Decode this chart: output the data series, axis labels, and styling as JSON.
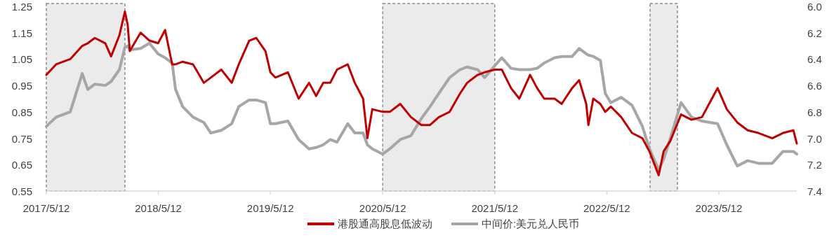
{
  "chart_data": {
    "type": "line",
    "x": [
      "2017-05-12",
      "2017-06-13",
      "2017-07-29",
      "2017-09-06",
      "2017-09-24",
      "2017-10-17",
      "2017-11-20",
      "2017-12-09",
      "2018-01-05",
      "2018-01-23",
      "2018-02-01",
      "2018-02-08",
      "2018-03-15",
      "2018-04-13",
      "2018-05-11",
      "2018-06-03",
      "2018-06-26",
      "2018-07-07",
      "2018-07-30",
      "2018-09-02",
      "2018-10-07",
      "2018-10-30",
      "2018-12-03",
      "2019-01-06",
      "2019-01-29",
      "2019-03-04",
      "2019-03-27",
      "2019-04-26",
      "2019-05-12",
      "2019-05-28",
      "2019-07-08",
      "2019-08-12",
      "2019-09-15",
      "2019-10-08",
      "2019-10-31",
      "2019-11-23",
      "2019-12-15",
      "2020-01-19",
      "2020-02-11",
      "2020-03-09",
      "2020-03-23",
      "2020-04-08",
      "2020-05-12",
      "2020-06-04",
      "2020-07-08",
      "2020-08-12",
      "2020-09-15",
      "2020-10-13",
      "2020-11-11",
      "2020-12-16",
      "2021-01-19",
      "2021-02-11",
      "2021-03-17",
      "2021-04-09",
      "2021-05-12",
      "2021-06-04",
      "2021-07-04",
      "2021-07-31",
      "2021-09-04",
      "2021-09-27",
      "2021-10-20",
      "2021-11-23",
      "2021-12-16",
      "2022-01-19",
      "2022-02-11",
      "2022-03-06",
      "2022-03-13",
      "2022-03-29",
      "2022-04-21",
      "2022-05-07",
      "2022-05-25",
      "2022-06-28",
      "2022-08-02",
      "2022-09-05",
      "2022-09-28",
      "2022-10-28",
      "2022-11-13",
      "2022-12-05",
      "2023-01-09",
      "2023-02-12",
      "2023-03-18",
      "2023-05-08",
      "2023-06-07",
      "2023-07-11",
      "2023-08-14",
      "2023-09-18",
      "2023-11-02",
      "2023-12-07",
      "2024-01-10",
      "2024-01-21"
    ],
    "series": [
      {
        "name": "港股通高股息低波动",
        "color": "#c00000",
        "values": [
          0.99,
          1.03,
          1.05,
          1.1,
          1.11,
          1.13,
          1.11,
          1.06,
          1.14,
          1.23,
          1.18,
          1.08,
          1.15,
          1.12,
          1.11,
          1.16,
          1.03,
          1.03,
          1.04,
          1.03,
          0.96,
          0.98,
          1.01,
          0.96,
          1.03,
          1.12,
          1.13,
          1.08,
          1.0,
          0.98,
          1.0,
          0.9,
          0.96,
          0.91,
          0.96,
          0.96,
          1.01,
          1.03,
          0.96,
          0.9,
          0.75,
          0.86,
          0.85,
          0.85,
          0.88,
          0.83,
          0.8,
          0.8,
          0.83,
          0.85,
          0.92,
          0.96,
          0.99,
          1.0,
          1.01,
          1.01,
          0.94,
          0.9,
          0.99,
          0.94,
          0.9,
          0.9,
          0.88,
          0.94,
          0.97,
          0.88,
          0.8,
          0.9,
          0.88,
          0.85,
          0.87,
          0.83,
          0.77,
          0.75,
          0.7,
          0.61,
          0.7,
          0.74,
          0.84,
          0.82,
          0.83,
          0.94,
          0.86,
          0.81,
          0.78,
          0.77,
          0.75,
          0.77,
          0.78,
          0.73
        ]
      },
      {
        "name": "中间价:美元兑人民币",
        "color": "#a6a6a6",
        "axis": "y2",
        "values": [
          6.91,
          6.84,
          6.8,
          6.51,
          6.63,
          6.59,
          6.6,
          6.57,
          6.48,
          6.31,
          6.3,
          6.33,
          6.32,
          6.28,
          6.36,
          6.39,
          6.43,
          6.63,
          6.76,
          6.84,
          6.88,
          6.96,
          6.94,
          6.89,
          6.76,
          6.71,
          6.71,
          6.73,
          6.89,
          6.89,
          6.87,
          7.01,
          7.08,
          7.07,
          7.05,
          7.01,
          7.03,
          6.89,
          6.96,
          6.96,
          7.05,
          7.08,
          7.12,
          7.08,
          7.01,
          6.98,
          6.85,
          6.76,
          6.66,
          6.54,
          6.48,
          6.46,
          6.48,
          6.54,
          6.45,
          6.39,
          6.47,
          6.48,
          6.48,
          6.47,
          6.43,
          6.39,
          6.38,
          6.38,
          6.32,
          6.36,
          6.37,
          6.38,
          6.41,
          6.66,
          6.73,
          6.69,
          6.75,
          6.91,
          7.08,
          7.24,
          7.16,
          7.0,
          6.73,
          6.84,
          6.87,
          6.89,
          7.05,
          7.21,
          7.17,
          7.19,
          7.19,
          7.1,
          7.1,
          7.12
        ]
      }
    ],
    "xlim": [
      "2017-05-12",
      "2024-01-21"
    ],
    "xticks": [
      {
        "value": "2017-05-12",
        "label": "2017/5/12"
      },
      {
        "value": "2018-05-12",
        "label": "2018/5/12"
      },
      {
        "value": "2019-05-12",
        "label": "2019/5/12"
      },
      {
        "value": "2020-05-12",
        "label": "2020/5/12"
      },
      {
        "value": "2021-05-12",
        "label": "2021/5/12"
      },
      {
        "value": "2022-05-12",
        "label": "2022/5/12"
      },
      {
        "value": "2023-05-12",
        "label": "2023/5/12"
      }
    ],
    "ylim": [
      0.55,
      1.25
    ],
    "yticks": [
      0.55,
      0.65,
      0.75,
      0.85,
      0.95,
      1.05,
      1.15,
      1.25
    ],
    "y2lim": [
      7.4,
      6.0
    ],
    "y2ticks": [
      {
        "value": 6,
        "label": "6.0"
      },
      6.2,
      6.4,
      6.6,
      6.8,
      {
        "value": 7,
        "label": "7.0"
      },
      7.2,
      7.4
    ],
    "bands": [
      {
        "axis": "x",
        "from": "2017-05-12",
        "to": "2018-01-23",
        "color": "#ebebeb"
      },
      {
        "axis": "x",
        "from": "2020-05-12",
        "to": "2021-05-12",
        "color": "#ebebeb"
      },
      {
        "axis": "x",
        "from": "2022-09-30",
        "to": "2022-12-28",
        "color": "#ebebeb"
      }
    ],
    "legend": "bottom"
  }
}
